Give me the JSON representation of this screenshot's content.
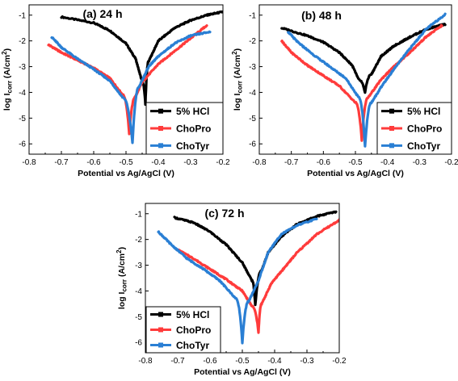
{
  "chart_data": [
    {
      "type": "line",
      "title": "(a) 24 h",
      "xlabel": "Potential vs Ag/AgCl (V)",
      "ylabel": "log I_corr (A/cm^2)",
      "ylabel_main": "log I",
      "ylabel_sub": "corr",
      "ylabel_unit": " (A/cm",
      "ylabel_sup": "2",
      "ylabel_close": ")",
      "xlim": [
        -0.8,
        -0.2
      ],
      "ylim": [
        -6.4,
        -0.6
      ],
      "xticks": [
        "-0.8",
        "-0.7",
        "-0.6",
        "-0.5",
        "-0.4",
        "-0.3",
        "-0.2"
      ],
      "yticks": [
        "-1",
        "-2",
        "-3",
        "-4",
        "-5",
        "-6"
      ],
      "legend_position": "bottom-right",
      "series": [
        {
          "name": "5% HCl",
          "color": "#000000",
          "ecorr": -0.44,
          "min": -4.45,
          "left": [
            [
              -0.7,
              -1.07
            ],
            [
              -0.6,
              -1.3
            ],
            [
              -0.55,
              -1.6
            ],
            [
              -0.5,
              -2.1
            ],
            [
              -0.47,
              -2.7
            ],
            [
              -0.45,
              -3.6
            ]
          ],
          "right": [
            [
              -0.43,
              -2.8
            ],
            [
              -0.4,
              -2.0
            ],
            [
              -0.35,
              -1.5
            ],
            [
              -0.3,
              -1.2
            ],
            [
              -0.25,
              -1.0
            ],
            [
              -0.2,
              -0.87
            ]
          ]
        },
        {
          "name": "ChoPro",
          "color": "#ff3b3b",
          "ecorr": -0.49,
          "min": -5.6,
          "left": [
            [
              -0.74,
              -2.15
            ],
            [
              -0.7,
              -2.45
            ],
            [
              -0.65,
              -2.75
            ],
            [
              -0.6,
              -3.05
            ],
            [
              -0.55,
              -3.45
            ],
            [
              -0.51,
              -4.1
            ]
          ],
          "right": [
            [
              -0.47,
              -4.15
            ],
            [
              -0.45,
              -3.6
            ],
            [
              -0.4,
              -2.9
            ],
            [
              -0.35,
              -2.4
            ],
            [
              -0.3,
              -1.9
            ],
            [
              -0.25,
              -1.4
            ]
          ]
        },
        {
          "name": "ChoTyr",
          "color": "#2a7fd4",
          "ecorr": -0.48,
          "min": -5.95,
          "left": [
            [
              -0.73,
              -1.85
            ],
            [
              -0.7,
              -2.25
            ],
            [
              -0.65,
              -2.7
            ],
            [
              -0.6,
              -3.1
            ],
            [
              -0.55,
              -3.55
            ],
            [
              -0.51,
              -4.2
            ]
          ],
          "right": [
            [
              -0.46,
              -3.8
            ],
            [
              -0.43,
              -3.0
            ],
            [
              -0.4,
              -2.6
            ],
            [
              -0.35,
              -2.1
            ],
            [
              -0.3,
              -1.8
            ],
            [
              -0.24,
              -1.65
            ]
          ]
        }
      ]
    },
    {
      "type": "line",
      "title": "(b) 48 h",
      "xlabel": "Potential vs Ag/AgCl (V)",
      "ylabel": "log I_corr (A/cm^2)",
      "ylabel_main": "log I",
      "ylabel_sub": "corr",
      "ylabel_unit": " (A/cm",
      "ylabel_sup": "2",
      "ylabel_close": ")",
      "xlim": [
        -0.8,
        -0.2
      ],
      "ylim": [
        -6.4,
        -0.6
      ],
      "xticks": [
        "-0.8",
        "-0.7",
        "-0.6",
        "-0.5",
        "-0.4",
        "-0.3",
        "-0.2"
      ],
      "yticks": [
        "-1",
        "-2",
        "-3",
        "-4",
        "-5",
        "-6"
      ],
      "legend_position": "bottom-right",
      "series": [
        {
          "name": "5% HCl",
          "color": "#000000",
          "ecorr": -0.47,
          "min": -4.0,
          "left": [
            [
              -0.73,
              -1.5
            ],
            [
              -0.65,
              -1.8
            ],
            [
              -0.6,
              -2.05
            ],
            [
              -0.55,
              -2.45
            ],
            [
              -0.51,
              -2.95
            ],
            [
              -0.49,
              -3.5
            ]
          ],
          "right": [
            [
              -0.45,
              -3.3
            ],
            [
              -0.42,
              -2.6
            ],
            [
              -0.38,
              -2.2
            ],
            [
              -0.33,
              -1.85
            ],
            [
              -0.28,
              -1.55
            ],
            [
              -0.22,
              -1.35
            ]
          ]
        },
        {
          "name": "ChoPro",
          "color": "#ff3b3b",
          "ecorr": -0.48,
          "min": -5.85,
          "left": [
            [
              -0.73,
              -2.0
            ],
            [
              -0.7,
              -2.45
            ],
            [
              -0.65,
              -2.95
            ],
            [
              -0.6,
              -3.35
            ],
            [
              -0.55,
              -3.75
            ],
            [
              -0.5,
              -4.4
            ]
          ],
          "right": [
            [
              -0.46,
              -4.2
            ],
            [
              -0.42,
              -3.5
            ],
            [
              -0.38,
              -3.0
            ],
            [
              -0.33,
              -2.45
            ],
            [
              -0.28,
              -1.85
            ],
            [
              -0.23,
              -1.4
            ]
          ]
        },
        {
          "name": "ChoTyr",
          "color": "#2a7fd4",
          "ecorr": -0.47,
          "min": -6.1,
          "left": [
            [
              -0.71,
              -1.65
            ],
            [
              -0.68,
              -2.05
            ],
            [
              -0.63,
              -2.55
            ],
            [
              -0.58,
              -3.0
            ],
            [
              -0.53,
              -3.45
            ],
            [
              -0.49,
              -4.2
            ]
          ],
          "right": [
            [
              -0.45,
              -4.4
            ],
            [
              -0.42,
              -3.8
            ],
            [
              -0.38,
              -3.1
            ],
            [
              -0.33,
              -2.3
            ],
            [
              -0.28,
              -1.55
            ],
            [
              -0.22,
              -0.97
            ]
          ]
        }
      ]
    },
    {
      "type": "line",
      "title": "(c) 72 h",
      "xlabel": "Potential vs Ag/AgCl (V)",
      "ylabel": "log I_corr (A/cm^2)",
      "ylabel_main": "log I",
      "ylabel_sub": "corr",
      "ylabel_unit": " (A/cm",
      "ylabel_sup": "2",
      "ylabel_close": ")",
      "xlim": [
        -0.8,
        -0.2
      ],
      "ylim": [
        -6.4,
        -0.6
      ],
      "xticks": [
        "-0.8",
        "-0.7",
        "-0.6",
        "-0.5",
        "-0.4",
        "-0.3",
        "-0.2"
      ],
      "yticks": [
        "-1",
        "-2",
        "-3",
        "-4",
        "-5",
        "-6"
      ],
      "legend_position": "bottom-left",
      "series": [
        {
          "name": "5% HCl",
          "color": "#000000",
          "ecorr": -0.46,
          "min": -4.55,
          "left": [
            [
              -0.71,
              -1.15
            ],
            [
              -0.65,
              -1.35
            ],
            [
              -0.6,
              -1.7
            ],
            [
              -0.55,
              -2.2
            ],
            [
              -0.5,
              -2.9
            ],
            [
              -0.47,
              -3.6
            ]
          ],
          "right": [
            [
              -0.44,
              -3.2
            ],
            [
              -0.42,
              -2.5
            ],
            [
              -0.38,
              -1.9
            ],
            [
              -0.33,
              -1.4
            ],
            [
              -0.27,
              -1.1
            ],
            [
              -0.21,
              -0.92
            ]
          ]
        },
        {
          "name": "ChoPro",
          "color": "#ff3b3b",
          "ecorr": -0.45,
          "min": -5.6,
          "left": [
            [
              -0.7,
              -2.4
            ],
            [
              -0.65,
              -2.75
            ],
            [
              -0.6,
              -3.15
            ],
            [
              -0.55,
              -3.55
            ],
            [
              -0.5,
              -4.0
            ],
            [
              -0.47,
              -4.6
            ]
          ],
          "right": [
            [
              -0.44,
              -4.5
            ],
            [
              -0.41,
              -3.7
            ],
            [
              -0.37,
              -3.1
            ],
            [
              -0.33,
              -2.5
            ],
            [
              -0.27,
              -1.8
            ],
            [
              -0.2,
              -1.25
            ]
          ]
        },
        {
          "name": "ChoTyr",
          "color": "#2a7fd4",
          "ecorr": -0.5,
          "min": -6.0,
          "left": [
            [
              -0.76,
              -1.7
            ],
            [
              -0.72,
              -2.2
            ],
            [
              -0.67,
              -2.75
            ],
            [
              -0.62,
              -3.15
            ],
            [
              -0.57,
              -3.6
            ],
            [
              -0.52,
              -4.3
            ]
          ],
          "right": [
            [
              -0.48,
              -4.4
            ],
            [
              -0.45,
              -3.6
            ],
            [
              -0.42,
              -2.5
            ],
            [
              -0.38,
              -1.8
            ],
            [
              -0.33,
              -1.45
            ],
            [
              -0.27,
              -1.2
            ]
          ]
        }
      ]
    }
  ]
}
